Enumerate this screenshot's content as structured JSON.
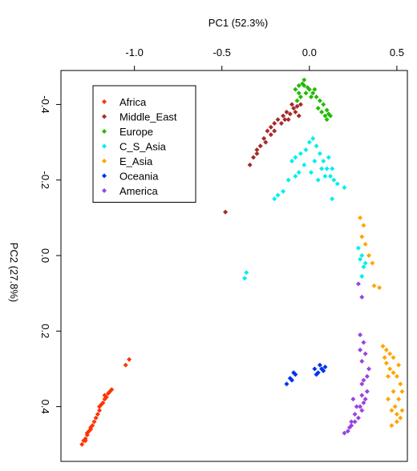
{
  "chart_data": {
    "type": "scatter",
    "xlabel": "PC1 (52.3%)",
    "ylabel": "PC2 (27.8%)",
    "x_axis_position": "top",
    "y_axis_reversed": true,
    "xlim": [
      -1.42,
      0.56
    ],
    "ylim": [
      -0.49,
      0.545
    ],
    "x_ticks": [
      -1.0,
      -0.5,
      0.0,
      0.5
    ],
    "x_tick_labels": [
      "-1.0",
      "-0.5",
      "0.0",
      "0.5"
    ],
    "y_ticks": [
      -0.4,
      -0.2,
      0.0,
      0.2,
      0.4
    ],
    "y_tick_labels": [
      "-0.4",
      "-0.2",
      "0.0",
      "0.2",
      "0.4"
    ],
    "grid": false,
    "legend_placement": "top-left",
    "series": [
      {
        "name": "Africa",
        "color": "#ff3300",
        "points": [
          [
            -1.3,
            0.5
          ],
          [
            -1.29,
            0.49
          ],
          [
            -1.28,
            0.485
          ],
          [
            -1.27,
            0.475
          ],
          [
            -1.26,
            0.465
          ],
          [
            -1.25,
            0.455
          ],
          [
            -1.24,
            0.45
          ],
          [
            -1.22,
            0.43
          ],
          [
            -1.21,
            0.42
          ],
          [
            -1.2,
            0.41
          ],
          [
            -1.18,
            0.39
          ],
          [
            -1.17,
            0.38
          ],
          [
            -1.15,
            0.365
          ],
          [
            -1.13,
            0.355
          ],
          [
            -1.14,
            0.36
          ],
          [
            -1.27,
            0.47
          ],
          [
            -1.25,
            0.46
          ],
          [
            -1.2,
            0.4
          ],
          [
            -1.17,
            0.37
          ],
          [
            -1.05,
            0.29
          ],
          [
            -1.03,
            0.275
          ],
          [
            -1.16,
            0.375
          ],
          [
            -1.28,
            0.49
          ],
          [
            -1.23,
            0.44
          ],
          [
            -1.19,
            0.395
          ]
        ]
      },
      {
        "name": "Middle_East",
        "color": "#a52a2a",
        "points": [
          [
            -0.34,
            -0.24
          ],
          [
            -0.32,
            -0.26
          ],
          [
            -0.3,
            -0.27
          ],
          [
            -0.28,
            -0.29
          ],
          [
            -0.26,
            -0.31
          ],
          [
            -0.24,
            -0.33
          ],
          [
            -0.22,
            -0.34
          ],
          [
            -0.2,
            -0.35
          ],
          [
            -0.18,
            -0.36
          ],
          [
            -0.15,
            -0.37
          ],
          [
            -0.13,
            -0.38
          ],
          [
            -0.11,
            -0.375
          ],
          [
            -0.09,
            -0.39
          ],
          [
            -0.07,
            -0.395
          ],
          [
            -0.05,
            -0.4
          ],
          [
            -0.12,
            -0.36
          ],
          [
            -0.16,
            -0.35
          ],
          [
            -0.2,
            -0.33
          ],
          [
            -0.25,
            -0.3
          ],
          [
            -0.08,
            -0.38
          ],
          [
            -0.06,
            -0.37
          ],
          [
            -0.1,
            -0.4
          ],
          [
            -0.14,
            -0.36
          ],
          [
            -0.48,
            -0.115
          ],
          [
            -0.3,
            -0.28
          ],
          [
            -0.22,
            -0.32
          ]
        ]
      },
      {
        "name": "Europe",
        "color": "#22bb00",
        "points": [
          [
            -0.08,
            -0.44
          ],
          [
            -0.06,
            -0.45
          ],
          [
            -0.04,
            -0.455
          ],
          [
            -0.03,
            -0.45
          ],
          [
            -0.01,
            -0.445
          ],
          [
            0.0,
            -0.44
          ],
          [
            0.02,
            -0.43
          ],
          [
            0.04,
            -0.42
          ],
          [
            0.06,
            -0.41
          ],
          [
            0.08,
            -0.4
          ],
          [
            0.1,
            -0.385
          ],
          [
            0.11,
            -0.375
          ],
          [
            0.12,
            -0.37
          ],
          [
            -0.05,
            -0.42
          ],
          [
            -0.02,
            -0.43
          ],
          [
            0.01,
            -0.42
          ],
          [
            0.05,
            -0.39
          ],
          [
            -0.06,
            -0.43
          ],
          [
            -0.03,
            -0.465
          ],
          [
            0.03,
            -0.44
          ],
          [
            0.07,
            -0.38
          ],
          [
            0.09,
            -0.37
          ],
          [
            -0.07,
            -0.41
          ],
          [
            0.1,
            -0.36
          ]
        ]
      },
      {
        "name": "C_S_Asia",
        "color": "#00eeee",
        "points": [
          [
            -0.1,
            -0.25
          ],
          [
            -0.08,
            -0.26
          ],
          [
            -0.05,
            -0.27
          ],
          [
            -0.02,
            -0.28
          ],
          [
            0.0,
            -0.3
          ],
          [
            0.02,
            -0.31
          ],
          [
            0.04,
            -0.29
          ],
          [
            0.06,
            -0.27
          ],
          [
            0.08,
            -0.25
          ],
          [
            0.1,
            -0.23
          ],
          [
            0.12,
            -0.21
          ],
          [
            0.14,
            -0.2
          ],
          [
            0.16,
            -0.19
          ],
          [
            0.2,
            -0.18
          ],
          [
            -0.06,
            -0.22
          ],
          [
            -0.03,
            -0.24
          ],
          [
            0.01,
            -0.22
          ],
          [
            0.05,
            -0.2
          ],
          [
            0.09,
            -0.21
          ],
          [
            0.13,
            -0.23
          ],
          [
            -0.12,
            -0.2
          ],
          [
            -0.08,
            -0.21
          ],
          [
            0.03,
            -0.25
          ],
          [
            0.07,
            -0.23
          ],
          [
            0.11,
            -0.26
          ],
          [
            -0.15,
            -0.17
          ],
          [
            -0.18,
            -0.16
          ],
          [
            -0.2,
            -0.15
          ],
          [
            0.13,
            -0.15
          ],
          [
            -0.37,
            0.06
          ],
          [
            -0.36,
            0.045
          ],
          [
            0.28,
            -0.02
          ],
          [
            0.3,
            0.0
          ],
          [
            0.31,
            0.03
          ],
          [
            0.3,
            0.055
          ],
          [
            0.32,
            0.02
          ],
          [
            0.29,
            0.01
          ]
        ]
      },
      {
        "name": "E_Asia",
        "color": "#ffa500",
        "points": [
          [
            0.29,
            -0.1
          ],
          [
            0.31,
            -0.08
          ],
          [
            0.3,
            -0.05
          ],
          [
            0.32,
            -0.03
          ],
          [
            0.34,
            0.0
          ],
          [
            0.36,
            0.02
          ],
          [
            0.37,
            0.08
          ],
          [
            0.4,
            0.085
          ],
          [
            0.42,
            0.24
          ],
          [
            0.44,
            0.25
          ],
          [
            0.46,
            0.26
          ],
          [
            0.48,
            0.27
          ],
          [
            0.46,
            0.3
          ],
          [
            0.48,
            0.31
          ],
          [
            0.5,
            0.32
          ],
          [
            0.52,
            0.34
          ],
          [
            0.53,
            0.36
          ],
          [
            0.51,
            0.38
          ],
          [
            0.49,
            0.4
          ],
          [
            0.5,
            0.42
          ],
          [
            0.52,
            0.43
          ],
          [
            0.47,
            0.45
          ],
          [
            0.5,
            0.44
          ],
          [
            0.48,
            0.36
          ],
          [
            0.45,
            0.38
          ],
          [
            0.47,
            0.41
          ],
          [
            0.53,
            0.41
          ],
          [
            0.51,
            0.29
          ],
          [
            0.44,
            0.285
          ],
          [
            0.43,
            0.27
          ],
          [
            0.45,
            0.32
          ]
        ]
      },
      {
        "name": "Oceania",
        "color": "#0033ee",
        "points": [
          [
            -0.13,
            0.34
          ],
          [
            -0.11,
            0.325
          ],
          [
            -0.09,
            0.31
          ],
          [
            -0.08,
            0.315
          ],
          [
            -0.1,
            0.33
          ],
          [
            0.03,
            0.3
          ],
          [
            0.05,
            0.31
          ],
          [
            0.07,
            0.3
          ],
          [
            0.09,
            0.295
          ],
          [
            0.04,
            0.315
          ],
          [
            0.06,
            0.29
          ],
          [
            0.08,
            0.305
          ]
        ]
      },
      {
        "name": "America",
        "color": "#9944dd",
        "points": [
          [
            0.2,
            0.47
          ],
          [
            0.22,
            0.465
          ],
          [
            0.24,
            0.45
          ],
          [
            0.26,
            0.44
          ],
          [
            0.28,
            0.43
          ],
          [
            0.3,
            0.41
          ],
          [
            0.31,
            0.39
          ],
          [
            0.3,
            0.37
          ],
          [
            0.33,
            0.36
          ],
          [
            0.31,
            0.33
          ],
          [
            0.34,
            0.3
          ],
          [
            0.3,
            0.28
          ],
          [
            0.29,
            0.25
          ],
          [
            0.32,
            0.26
          ],
          [
            0.26,
            0.42
          ],
          [
            0.23,
            0.455
          ],
          [
            0.29,
            0.4
          ],
          [
            0.32,
            0.38
          ],
          [
            0.3,
            0.34
          ],
          [
            0.25,
            0.38
          ],
          [
            0.27,
            0.4
          ],
          [
            0.28,
            0.075
          ],
          [
            0.3,
            0.11
          ],
          [
            0.29,
            0.21
          ],
          [
            0.31,
            0.23
          ],
          [
            0.33,
            0.32
          ],
          [
            0.24,
            0.44
          ]
        ]
      }
    ]
  }
}
